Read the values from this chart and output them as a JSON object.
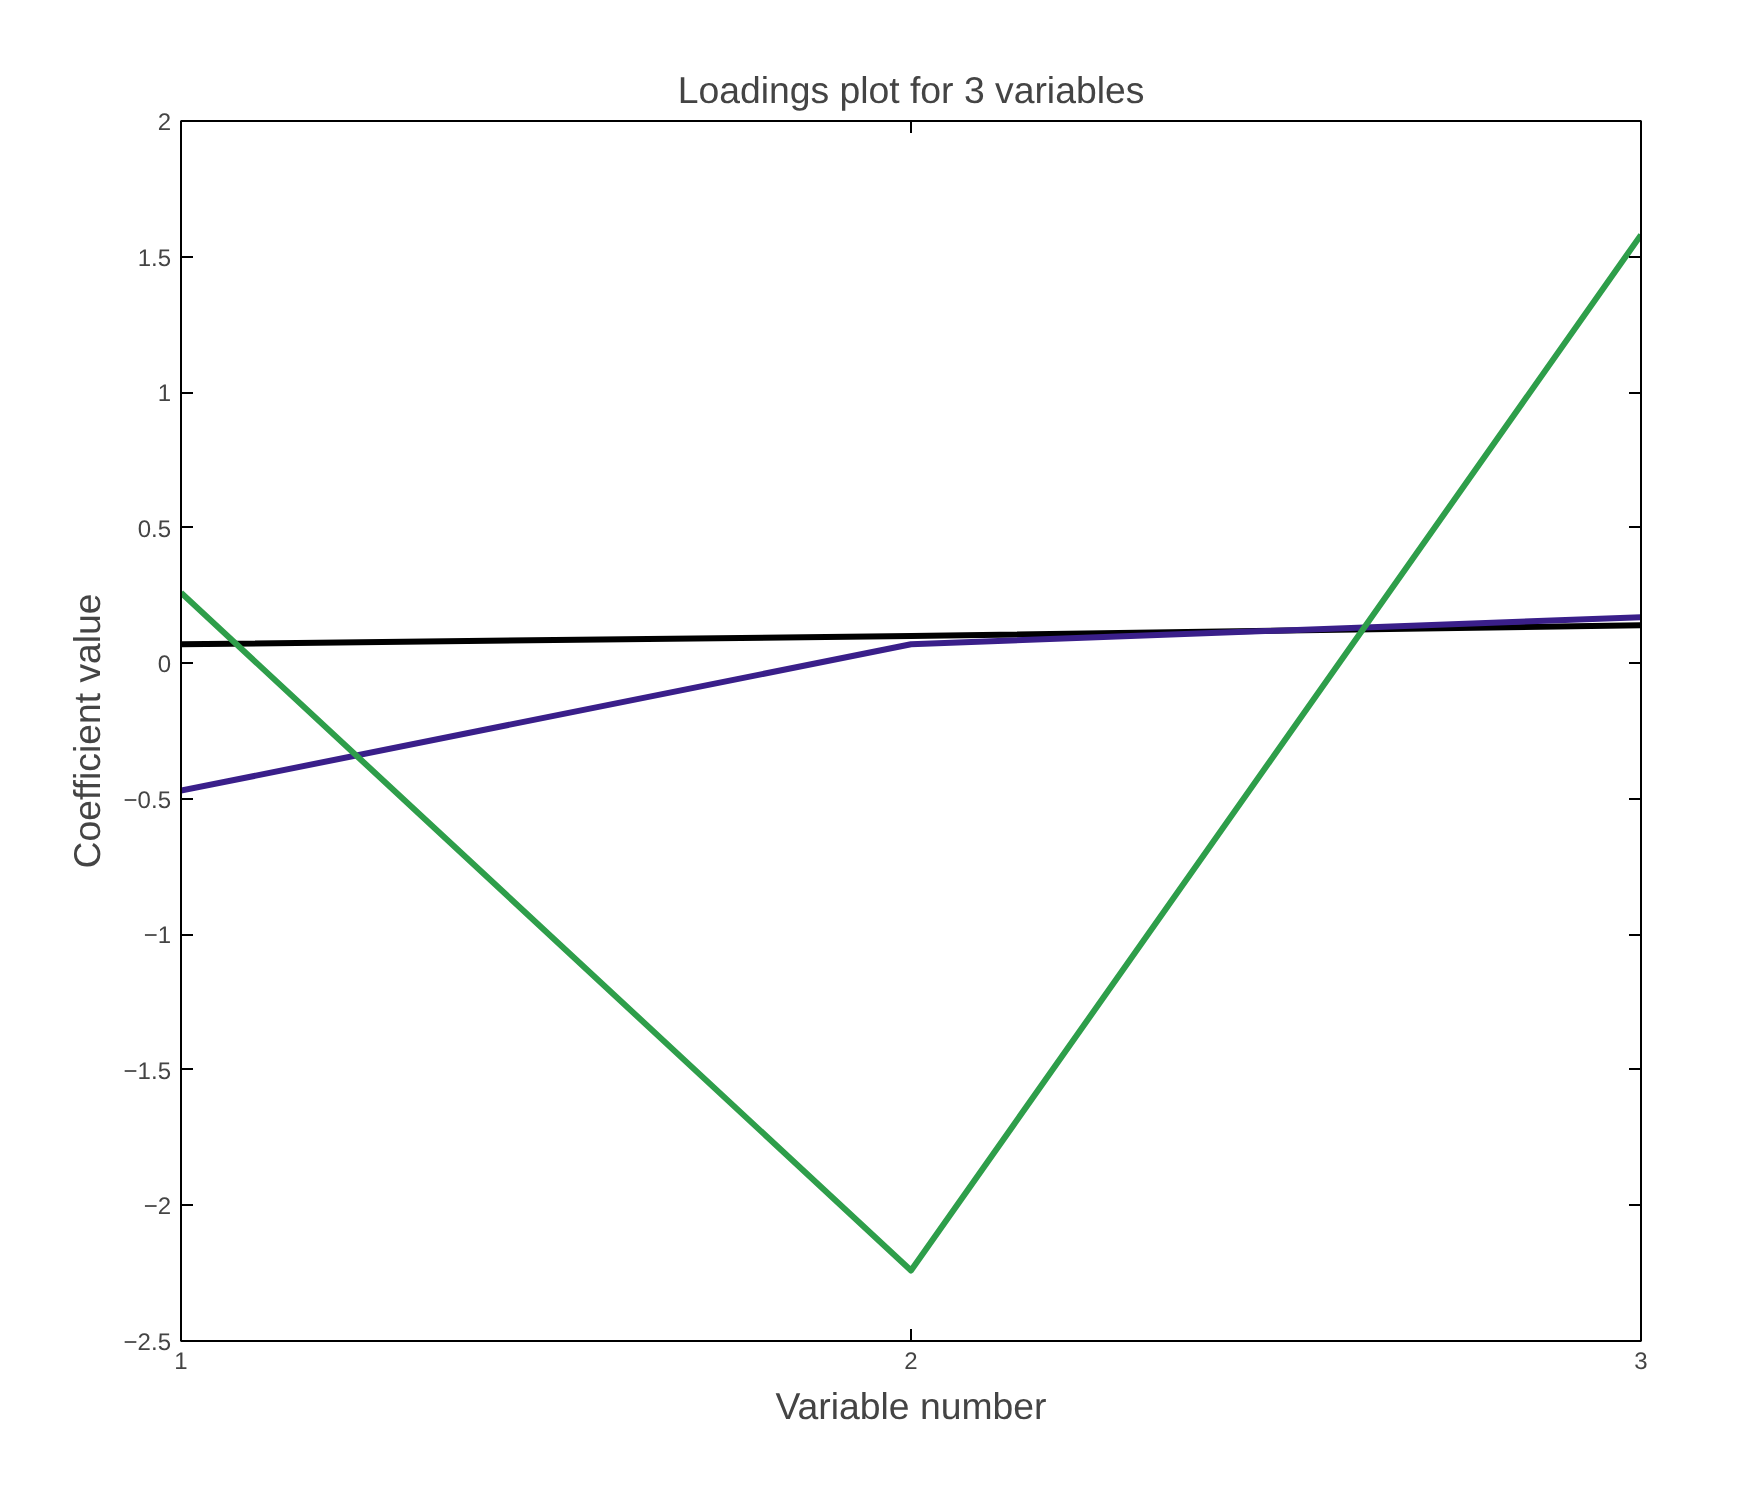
{
  "chart_data": {
    "type": "line",
    "title": "Loadings plot for 3 variables",
    "xlabel": "Variable number",
    "ylabel": "Coefficient value",
    "x": [
      1,
      2,
      3
    ],
    "series": [
      {
        "color": "#000000",
        "values": [
          0.07,
          0.1,
          0.14
        ]
      },
      {
        "color": "#3a1f8a",
        "values": [
          -0.47,
          0.07,
          0.17
        ]
      },
      {
        "color": "#2e9e4a",
        "values": [
          0.26,
          -2.24,
          1.58
        ]
      }
    ],
    "xlim": [
      1,
      3
    ],
    "xticks": [
      1,
      2,
      3
    ],
    "ylim": [
      -2.5,
      2
    ],
    "yticks": [
      {
        "value": -2.5,
        "label": "−2.5"
      },
      {
        "value": -2,
        "label": "−2"
      },
      {
        "value": -1.5,
        "label": "−1.5"
      },
      {
        "value": -1,
        "label": "−1"
      },
      {
        "value": -0.5,
        "label": "−0.5"
      },
      0,
      0.5,
      1,
      1.5,
      2
    ],
    "line_style": "solid"
  }
}
